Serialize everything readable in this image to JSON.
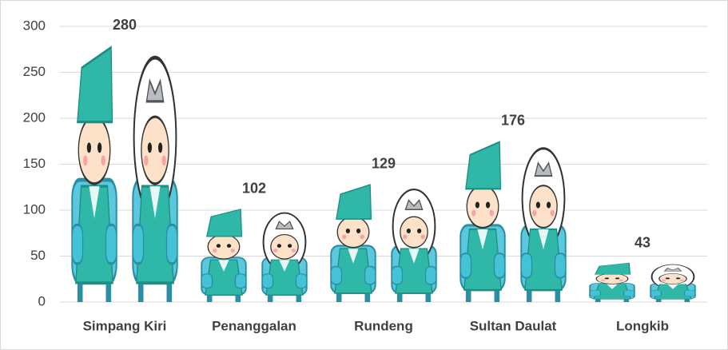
{
  "chart_data": {
    "type": "pictograph",
    "categories": [
      "Simpang Kiri",
      "Penanggalan",
      "Rundeng",
      "Sultan Daulat",
      "Longkib"
    ],
    "values": [
      280,
      102,
      129,
      176,
      43
    ],
    "ylim": [
      0,
      300
    ],
    "yticks": [
      0,
      50,
      100,
      150,
      200,
      250,
      300
    ],
    "grid": true,
    "color": "#2fb8a8"
  }
}
